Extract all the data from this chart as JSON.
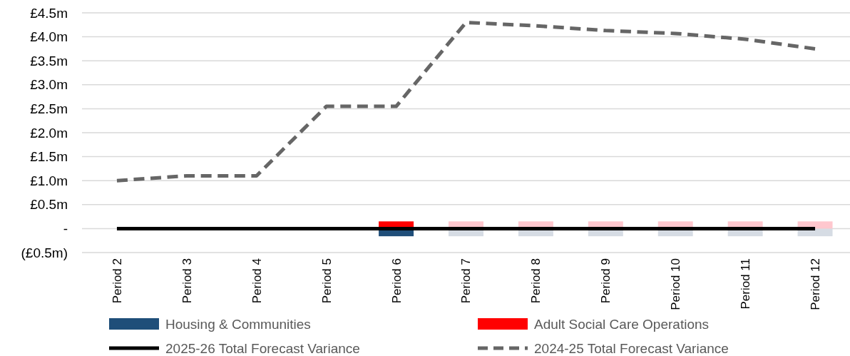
{
  "chart_data": {
    "type": "bar",
    "stacked": true,
    "categories": [
      "Period 2",
      "Period 3",
      "Period 4",
      "Period 5",
      "Period 6",
      "Period 7",
      "Period 8",
      "Period 9",
      "Period 10",
      "Period 11",
      "Period 12"
    ],
    "series": [
      {
        "name": "Housing & Communities",
        "color": "#1f4e79",
        "colors": [
          null,
          null,
          null,
          null,
          "#1f4e79",
          "#d6dce4",
          "#d6dce4",
          "#d6dce4",
          "#d6dce4",
          "#d6dce4",
          "#d6dce4"
        ],
        "values": [
          null,
          null,
          null,
          null,
          -0.16,
          -0.16,
          -0.16,
          -0.16,
          -0.16,
          -0.16,
          -0.16
        ]
      },
      {
        "name": "Adult Social Care Operations",
        "color": "#ff0000",
        "colors": [
          null,
          null,
          null,
          null,
          "#ff0000",
          "#ffc7ce",
          "#ffc7ce",
          "#ffc7ce",
          "#ffc7ce",
          "#ffc7ce",
          "#ffc7ce"
        ],
        "values": [
          null,
          null,
          null,
          null,
          0.15,
          0.15,
          0.15,
          0.15,
          0.15,
          0.15,
          0.15
        ]
      },
      {
        "name": "2025-26 Total Forecast Variance",
        "type": "line",
        "color": "#000000",
        "line_style": "solid",
        "values": [
          0,
          0,
          0,
          0,
          0,
          0,
          0,
          0,
          0,
          0,
          0
        ]
      },
      {
        "name": "2024-25 Total Forecast Variance",
        "type": "line",
        "color": "#666666",
        "line_style": "dashed",
        "values": [
          1.0,
          1.1,
          1.1,
          2.55,
          2.55,
          4.3,
          4.23,
          4.13,
          4.07,
          3.95,
          3.75
        ]
      }
    ],
    "ylim": [
      -0.5,
      4.5
    ],
    "yticks": [
      {
        "value": -0.5,
        "label": "(£0.5m)"
      },
      {
        "value": 0,
        "label": "-"
      },
      {
        "value": 0.5,
        "label": "£0.5m"
      },
      {
        "value": 1,
        "label": "£1.0m"
      },
      {
        "value": 1.5,
        "label": "£1.5m"
      },
      {
        "value": 2,
        "label": "£2.0m"
      },
      {
        "value": 2.5,
        "label": "£2.5m"
      },
      {
        "value": 3,
        "label": "£3.0m"
      },
      {
        "value": 3.5,
        "label": "£3.5m"
      },
      {
        "value": 4,
        "label": "£4.0m"
      },
      {
        "value": 4.5,
        "label": "£4.5m"
      }
    ],
    "grid": "y",
    "legend": "bottom",
    "marker": "none"
  }
}
